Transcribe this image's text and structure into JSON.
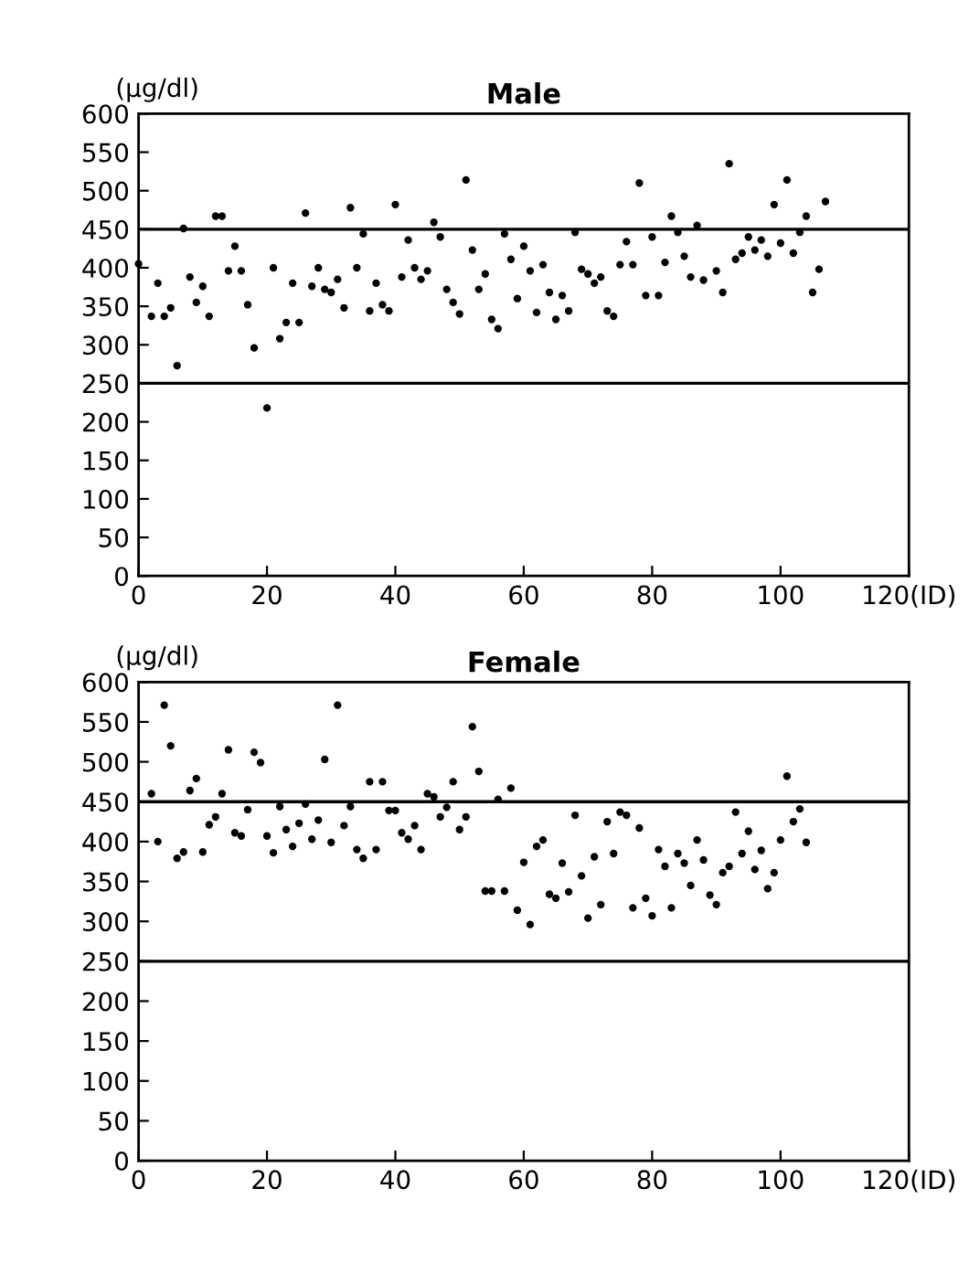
{
  "chart_data": [
    {
      "type": "scatter",
      "title": "Male",
      "ylabel": "(µg/dl)",
      "color": "#000000",
      "marker": "circle",
      "grid": false,
      "legend": false,
      "x": [
        0,
        2,
        3,
        4,
        5,
        6,
        7,
        8,
        9,
        10,
        11,
        12,
        13,
        14,
        15,
        16,
        17,
        18,
        20,
        21,
        22,
        23,
        24,
        25,
        26,
        27,
        28,
        29,
        30,
        31,
        32,
        33,
        34,
        35,
        36,
        37,
        38,
        39,
        40,
        41,
        42,
        43,
        44,
        45,
        46,
        47,
        48,
        49,
        50,
        51,
        52,
        53,
        54,
        55,
        56,
        57,
        58,
        59,
        60,
        61,
        62,
        63,
        64,
        65,
        66,
        67,
        68,
        69,
        70,
        71,
        72,
        73,
        74,
        75,
        76,
        77,
        78,
        79,
        80,
        81,
        82,
        83,
        84,
        85,
        86,
        87,
        88,
        90,
        91,
        92,
        93,
        94,
        95,
        96,
        97,
        98,
        99,
        100,
        101,
        102,
        103,
        104,
        105,
        106,
        107
      ],
      "values": [
        405,
        337,
        380,
        337,
        348,
        273,
        451,
        388,
        355,
        376,
        337,
        467,
        467,
        396,
        428,
        396,
        352,
        296,
        218,
        400,
        308,
        329,
        380,
        329,
        471,
        376,
        400,
        372,
        368,
        385,
        348,
        478,
        400,
        444,
        344,
        380,
        352,
        344,
        482,
        388,
        436,
        400,
        385,
        396,
        459,
        440,
        372,
        355,
        340,
        514,
        423,
        372,
        392,
        333,
        321,
        444,
        411,
        360,
        428,
        396,
        342,
        404,
        368,
        333,
        364,
        344,
        446,
        398,
        392,
        380,
        388,
        344,
        337,
        404,
        434,
        404,
        510,
        364,
        440,
        364,
        407,
        467,
        446,
        415,
        388,
        455,
        384,
        396,
        368,
        535,
        411,
        419,
        440,
        423,
        436,
        415,
        482,
        432,
        514,
        419,
        446,
        467,
        368,
        398,
        486
      ],
      "xlim": [
        0,
        120
      ],
      "xticks": [
        0,
        20,
        40,
        60,
        80,
        100,
        {
          "value": 120,
          "label": "120(ID)"
        }
      ],
      "ylim": [
        0,
        600
      ],
      "yticks": [
        0,
        50,
        100,
        150,
        200,
        250,
        300,
        350,
        400,
        450,
        500,
        550,
        600
      ],
      "ref_lines": [
        {
          "axis": "y",
          "value": 450,
          "color": "#000000"
        },
        {
          "axis": "y",
          "value": 250,
          "color": "#000000"
        }
      ]
    },
    {
      "type": "scatter",
      "title": "Female",
      "ylabel": "(µg/dl)",
      "color": "#000000",
      "marker": "circle",
      "grid": false,
      "legend": false,
      "x": [
        2,
        3,
        4,
        5,
        6,
        7,
        8,
        9,
        10,
        11,
        12,
        13,
        14,
        15,
        16,
        17,
        18,
        19,
        20,
        21,
        22,
        23,
        24,
        25,
        26,
        27,
        28,
        29,
        30,
        31,
        32,
        33,
        34,
        35,
        36,
        37,
        38,
        39,
        40,
        41,
        42,
        43,
        44,
        45,
        46,
        47,
        48,
        49,
        50,
        51,
        52,
        53,
        54,
        55,
        56,
        57,
        58,
        59,
        60,
        61,
        62,
        63,
        64,
        65,
        66,
        67,
        68,
        69,
        70,
        71,
        72,
        73,
        74,
        75,
        76,
        77,
        78,
        79,
        80,
        81,
        82,
        83,
        84,
        85,
        86,
        87,
        88,
        89,
        90,
        91,
        92,
        93,
        94,
        95,
        96,
        97,
        98,
        99,
        100,
        101,
        102,
        103,
        104
      ],
      "values": [
        460,
        400,
        571,
        520,
        379,
        387,
        464,
        479,
        387,
        421,
        431,
        460,
        515,
        411,
        407,
        440,
        512,
        499,
        407,
        386,
        444,
        415,
        394,
        423,
        447,
        403,
        427,
        503,
        399,
        571,
        420,
        444,
        390,
        379,
        475,
        390,
        475,
        439,
        439,
        411,
        403,
        420,
        390,
        460,
        456,
        431,
        443,
        475,
        415,
        431,
        544,
        488,
        338,
        338,
        453,
        338,
        467,
        314,
        374,
        296,
        394,
        402,
        334,
        329,
        373,
        337,
        433,
        357,
        304,
        381,
        321,
        425,
        385,
        437,
        433,
        317,
        417,
        329,
        307,
        390,
        369,
        317,
        385,
        373,
        345,
        402,
        377,
        333,
        321,
        361,
        369,
        437,
        385,
        413,
        365,
        389,
        341,
        361,
        402,
        482,
        425,
        441,
        399
      ],
      "xlim": [
        0,
        120
      ],
      "xticks": [
        0,
        20,
        40,
        60,
        80,
        100,
        {
          "value": 120,
          "label": "120(ID)"
        }
      ],
      "ylim": [
        0,
        600
      ],
      "yticks": [
        0,
        50,
        100,
        150,
        200,
        250,
        300,
        350,
        400,
        450,
        500,
        550,
        600
      ],
      "ref_lines": [
        {
          "axis": "y",
          "value": 450,
          "color": "#000000"
        },
        {
          "axis": "y",
          "value": 250,
          "color": "#000000"
        }
      ]
    }
  ]
}
